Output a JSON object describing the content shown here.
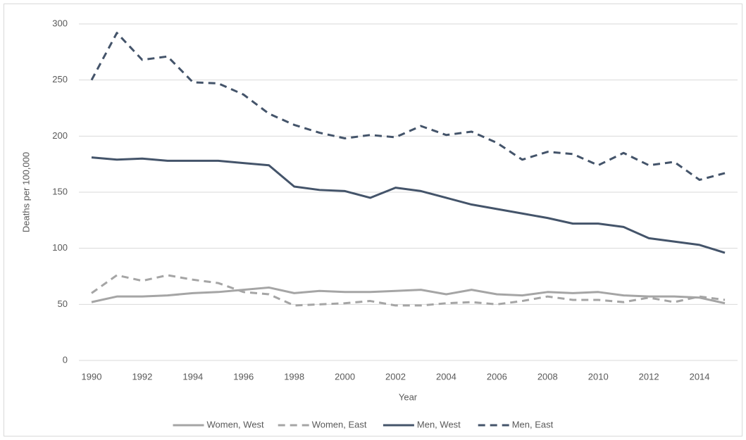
{
  "chart_data": {
    "type": "line",
    "x_label": "Year",
    "y_label": "Deaths per 100,000",
    "x": [
      1990,
      1991,
      1992,
      1993,
      1994,
      1995,
      1996,
      1997,
      1998,
      1999,
      2000,
      2001,
      2002,
      2003,
      2004,
      2005,
      2006,
      2007,
      2008,
      2009,
      2010,
      2011,
      2012,
      2013,
      2014,
      2015
    ],
    "series": [
      {
        "name": "Women, West",
        "color": "#a5a5a5",
        "line_style": "solid",
        "values": [
          52,
          57,
          57,
          58,
          60,
          61,
          63,
          65,
          60,
          62,
          61,
          61,
          62,
          63,
          59,
          63,
          59,
          58,
          61,
          60,
          61,
          58,
          57,
          57,
          56,
          51
        ]
      },
      {
        "name": "Women, East",
        "color": "#a5a5a5",
        "line_style": "dashed",
        "values": [
          60,
          76,
          71,
          76,
          72,
          69,
          61,
          59,
          49,
          50,
          51,
          53,
          49,
          49,
          51,
          52,
          50,
          53,
          57,
          54,
          54,
          52,
          56,
          52,
          57,
          54
        ]
      },
      {
        "name": "Men, West",
        "color": "#44546a",
        "line_style": "solid",
        "values": [
          181,
          179,
          180,
          178,
          178,
          178,
          176,
          174,
          155,
          152,
          151,
          145,
          154,
          151,
          145,
          139,
          135,
          131,
          127,
          122,
          122,
          119,
          109,
          106,
          103,
          96
        ]
      },
      {
        "name": "Men, East",
        "color": "#44546a",
        "line_style": "dashed",
        "values": [
          250,
          292,
          268,
          271,
          248,
          247,
          237,
          220,
          210,
          203,
          198,
          201,
          199,
          209,
          201,
          204,
          194,
          179,
          186,
          184,
          174,
          185,
          174,
          177,
          161,
          167
        ]
      }
    ],
    "xlim": [
      1989.5,
      2015.5
    ],
    "xticks": [
      1990,
      1992,
      1994,
      1996,
      1998,
      2000,
      2002,
      2004,
      2006,
      2008,
      2010,
      2012,
      2014
    ],
    "ylim": [
      0,
      300
    ],
    "yticks": [
      0,
      50,
      100,
      150,
      200,
      250,
      300
    ],
    "grid": true,
    "legend": "bottom"
  }
}
